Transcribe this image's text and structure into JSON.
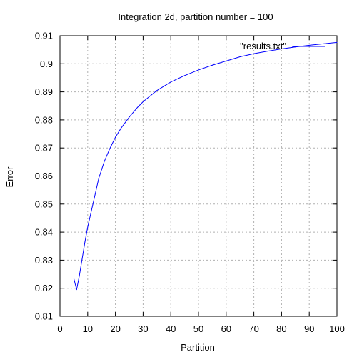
{
  "chart_data": {
    "type": "line",
    "title": "Integration 2d, partition number = 100",
    "xlabel": "Partition",
    "ylabel": "Error",
    "xlim": [
      0,
      100
    ],
    "ylim": [
      0.81,
      0.91
    ],
    "xticks": [
      0,
      10,
      20,
      30,
      40,
      50,
      60,
      70,
      80,
      90,
      100
    ],
    "yticks": [
      0.81,
      0.82,
      0.83,
      0.84,
      0.85,
      0.86,
      0.87,
      0.88,
      0.89,
      0.9,
      0.91
    ],
    "xtick_labels": [
      "0",
      "10",
      "20",
      "30",
      "40",
      "50",
      "60",
      "70",
      "80",
      "90",
      "100"
    ],
    "ytick_labels": [
      "0.81",
      "0.82",
      "0.83",
      "0.84",
      "0.85",
      "0.86",
      "0.87",
      "0.88",
      "0.89",
      "0.9",
      "0.91"
    ],
    "grid": true,
    "legend_position": "top-right",
    "line_color": "#0000ff",
    "series": [
      {
        "name": "\"results.txt\"",
        "color": "#0000ff",
        "x": [
          5,
          6,
          7,
          8,
          9,
          10,
          12,
          14,
          16,
          18,
          20,
          22,
          25,
          28,
          30,
          35,
          40,
          45,
          50,
          55,
          60,
          65,
          70,
          75,
          80,
          85,
          90,
          95,
          100
        ],
        "y": [
          0.8235,
          0.8195,
          0.8245,
          0.8305,
          0.8365,
          0.8418,
          0.8505,
          0.8592,
          0.8652,
          0.8698,
          0.8738,
          0.877,
          0.881,
          0.8845,
          0.8865,
          0.8905,
          0.8935,
          0.8958,
          0.8978,
          0.8995,
          0.901,
          0.9025,
          0.9036,
          0.9045,
          0.9053,
          0.906,
          0.9066,
          0.9071,
          0.9076
        ]
      }
    ]
  }
}
